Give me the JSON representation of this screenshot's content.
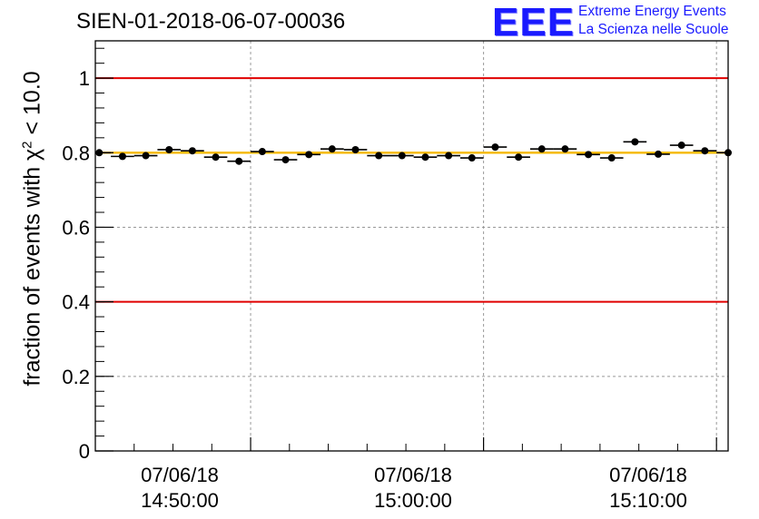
{
  "title": "SIEN-01-2018-06-07-00036",
  "logo": {
    "mark": "EEE",
    "line1": "Extreme Energy Events",
    "line2": "La Scienza nelle Scuole"
  },
  "colors": {
    "limit_line": "#e00000",
    "mean_line": "#f5b800",
    "points": "#000000",
    "grid": "#999999"
  },
  "chart_data": {
    "type": "scatter",
    "title": "SIEN-01-2018-06-07-00036",
    "ylabel_prefix": "fraction of events with ",
    "ylabel_symbol": "χ",
    "ylabel_sup": "2",
    "ylabel_suffix": " < 10.0",
    "xlabel": "",
    "xlim_minutes": [
      -20,
      61.5
    ],
    "ylim": [
      0,
      1.1
    ],
    "yticks": [
      0,
      0.2,
      0.4,
      0.6,
      0.8,
      1
    ],
    "ytick_labels": [
      "0",
      "0.2",
      "0.4",
      "0.6",
      "0.8",
      "1"
    ],
    "xticks": [
      {
        "minute": 0,
        "date": "07/06/18",
        "time": "14:50:00"
      },
      {
        "minute": 30,
        "date": "07/06/18",
        "time": "15:00:00"
      },
      {
        "minute": 60,
        "date": "07/06/18",
        "time": "15:10:00"
      }
    ],
    "reference_lines": [
      {
        "y": 1.0,
        "color": "red"
      },
      {
        "y": 0.4,
        "color": "red"
      },
      {
        "y": 0.8,
        "color": "orange",
        "label": "mean"
      }
    ],
    "bin_half_width_minutes": 1.5,
    "x": [
      -19.5,
      -16.5,
      -13.5,
      -10.5,
      -7.5,
      -4.5,
      -1.5,
      1.5,
      4.5,
      7.5,
      10.5,
      13.5,
      16.5,
      19.5,
      22.5,
      25.5,
      28.5,
      31.5,
      34.5,
      37.5,
      40.5,
      43.5,
      46.5,
      49.5,
      52.5,
      55.5,
      58.5,
      61.5
    ],
    "y": [
      0.8,
      0.79,
      0.792,
      0.808,
      0.805,
      0.788,
      0.777,
      0.803,
      0.781,
      0.795,
      0.81,
      0.808,
      0.792,
      0.792,
      0.788,
      0.792,
      0.786,
      0.815,
      0.788,
      0.81,
      0.81,
      0.795,
      0.786,
      0.829,
      0.796,
      0.82,
      0.805,
      0.8
    ]
  }
}
